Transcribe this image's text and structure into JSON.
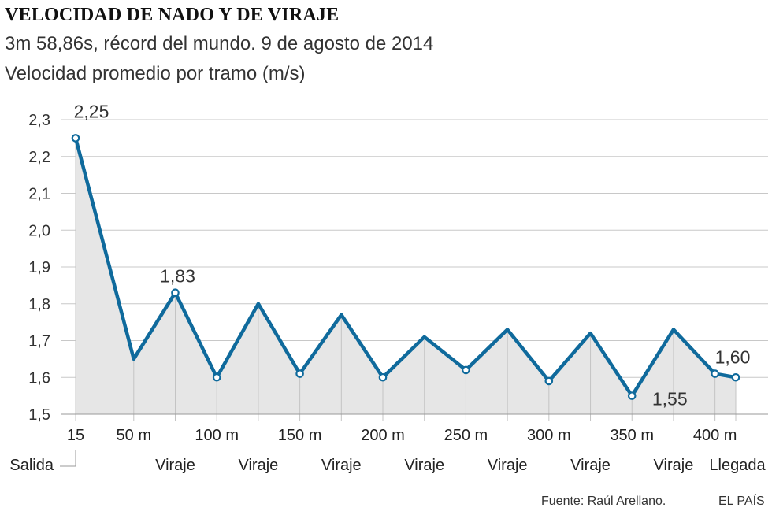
{
  "title": "VELOCIDAD DE NADO Y DE VIRAJE",
  "subtitle": "3m 58,86s, récord del mundo. 9 de agosto de 2014",
  "ylabel": "Velocidad promedio por tramo (m/s)",
  "source": "Fuente: Raúl Arellano.",
  "brand": "EL PAÍS",
  "colors": {
    "line": "#0f6a9c",
    "area": "#e6e6e6",
    "grid": "#c8c8c8"
  },
  "chart_data": {
    "type": "line",
    "title": "VELOCIDAD DE NADO Y DE VIRAJE",
    "ylabel": "Velocidad promedio por tramo (m/s)",
    "ylim": [
      1.5,
      2.3
    ],
    "yticks": [
      "1,5",
      "1,6",
      "1,7",
      "1,8",
      "1,9",
      "2,0",
      "2,1",
      "2,2",
      "2,3"
    ],
    "grid": true,
    "x": [
      15,
      50,
      75,
      100,
      125,
      150,
      175,
      200,
      225,
      250,
      275,
      300,
      325,
      350,
      375,
      400,
      412.5
    ],
    "values": [
      2.25,
      1.65,
      1.83,
      1.6,
      1.8,
      1.61,
      1.77,
      1.6,
      1.71,
      1.62,
      1.73,
      1.59,
      1.72,
      1.55,
      1.73,
      1.61,
      1.6
    ],
    "markers": [
      true,
      false,
      true,
      true,
      false,
      true,
      false,
      true,
      false,
      true,
      false,
      true,
      false,
      true,
      false,
      true,
      true
    ],
    "xtick_labels": [
      {
        "x": 15,
        "label": "15"
      },
      {
        "x": 50,
        "label": "50 m"
      },
      {
        "x": 100,
        "label": "100 m"
      },
      {
        "x": 150,
        "label": "150 m"
      },
      {
        "x": 200,
        "label": "200 m"
      },
      {
        "x": 250,
        "label": "250 m"
      },
      {
        "x": 300,
        "label": "300 m"
      },
      {
        "x": 350,
        "label": "350 m"
      },
      {
        "x": 400,
        "label": "400 m"
      }
    ],
    "phase_labels": [
      {
        "x": 15,
        "label": "Salida"
      },
      {
        "x": 75,
        "label": "Viraje"
      },
      {
        "x": 125,
        "label": "Viraje"
      },
      {
        "x": 175,
        "label": "Viraje"
      },
      {
        "x": 225,
        "label": "Viraje"
      },
      {
        "x": 275,
        "label": "Viraje"
      },
      {
        "x": 325,
        "label": "Viraje"
      },
      {
        "x": 375,
        "label": "Viraje"
      },
      {
        "x": 412.5,
        "label": "Llegada"
      }
    ],
    "data_labels": [
      {
        "index": 0,
        "text": "2,25"
      },
      {
        "index": 2,
        "text": "1,83"
      },
      {
        "index": 13,
        "text": "1,55"
      },
      {
        "index": 16,
        "text": "1,60"
      }
    ]
  }
}
